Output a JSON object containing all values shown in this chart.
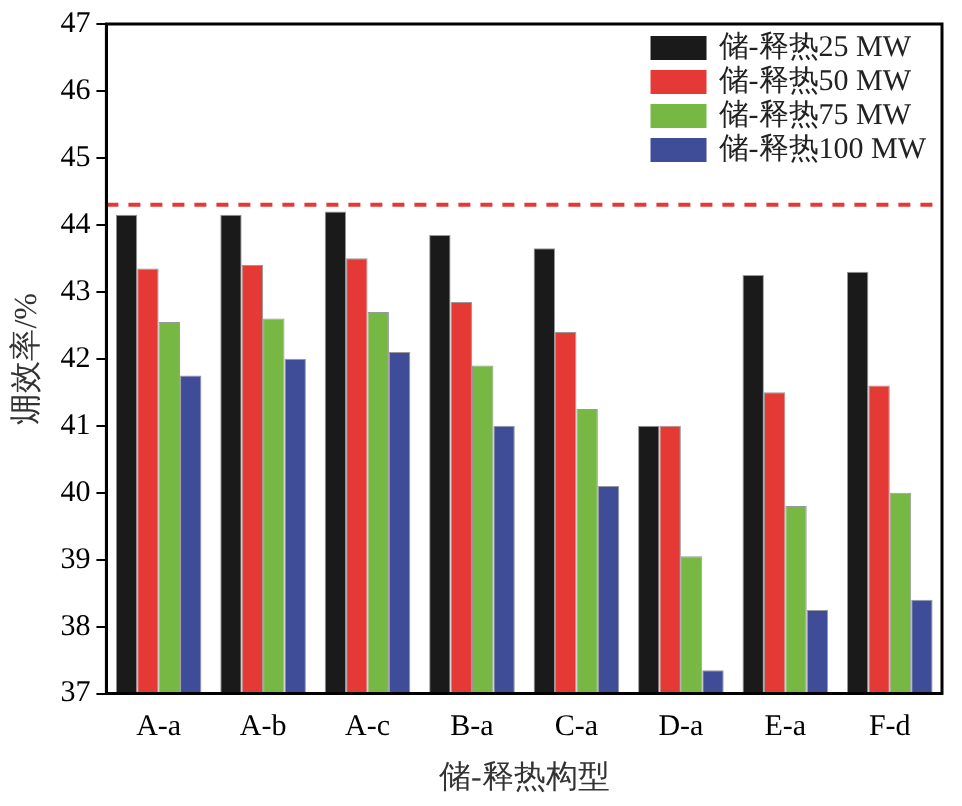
{
  "chart_data": {
    "type": "bar",
    "xlabel": "储-释热构型",
    "ylabel": "㶲效率/%",
    "categories": [
      "A-a",
      "A-b",
      "A-c",
      "B-a",
      "C-a",
      "D-a",
      "E-a",
      "F-d"
    ],
    "series": [
      {
        "name": "储-释热25 MW",
        "color": "#1a1a1a",
        "values": [
          44.15,
          44.15,
          44.2,
          43.85,
          43.65,
          41.0,
          43.25,
          43.3
        ]
      },
      {
        "name": "储-释热50 MW",
        "color": "#e53935",
        "values": [
          43.35,
          43.4,
          43.5,
          42.85,
          42.4,
          41.0,
          41.5,
          41.6
        ]
      },
      {
        "name": "储-释热75 MW",
        "color": "#76b843",
        "values": [
          42.55,
          42.6,
          42.7,
          41.9,
          41.25,
          39.05,
          39.8,
          40.0
        ]
      },
      {
        "name": "储-释热100 MW",
        "color": "#3f4c97",
        "values": [
          41.75,
          42.0,
          42.1,
          41.0,
          40.1,
          37.35,
          38.25,
          38.4
        ]
      }
    ],
    "ylim": [
      37,
      47
    ],
    "yticks": [
      37,
      38,
      39,
      40,
      41,
      42,
      43,
      44,
      45,
      46,
      47
    ],
    "ref_lines": [
      {
        "axis": "y",
        "value": 44.3,
        "color": "#e53935",
        "line_style": "dashed"
      }
    ],
    "grid": false,
    "legend": "top right"
  }
}
